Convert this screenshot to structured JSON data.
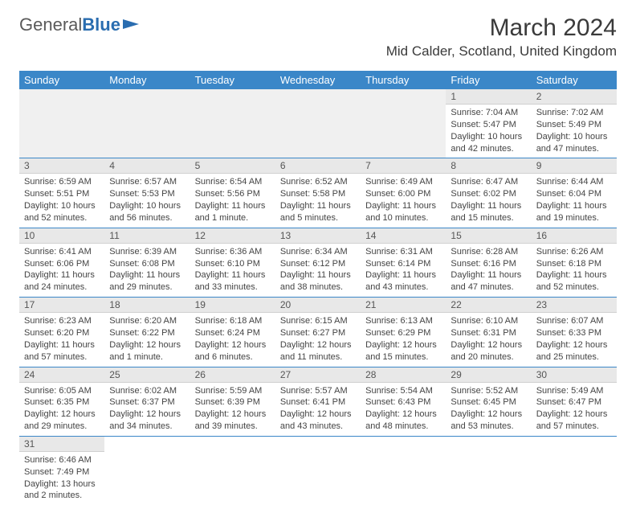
{
  "logo": {
    "text1": "General",
    "text2": "Blue"
  },
  "title": "March 2024",
  "location": "Mid Calder, Scotland, United Kingdom",
  "colors": {
    "header_bg": "#3b87c8",
    "header_fg": "#ffffff",
    "daynum_bg": "#e8e8e8",
    "border": "#3b87c8",
    "logo_accent": "#2a6db0"
  },
  "weekdays": [
    "Sunday",
    "Monday",
    "Tuesday",
    "Wednesday",
    "Thursday",
    "Friday",
    "Saturday"
  ],
  "cells": [
    {
      "n": "",
      "l1": "",
      "l2": "",
      "l3": "",
      "l4": ""
    },
    {
      "n": "",
      "l1": "",
      "l2": "",
      "l3": "",
      "l4": ""
    },
    {
      "n": "",
      "l1": "",
      "l2": "",
      "l3": "",
      "l4": ""
    },
    {
      "n": "",
      "l1": "",
      "l2": "",
      "l3": "",
      "l4": ""
    },
    {
      "n": "",
      "l1": "",
      "l2": "",
      "l3": "",
      "l4": ""
    },
    {
      "n": "1",
      "l1": "Sunrise: 7:04 AM",
      "l2": "Sunset: 5:47 PM",
      "l3": "Daylight: 10 hours",
      "l4": "and 42 minutes."
    },
    {
      "n": "2",
      "l1": "Sunrise: 7:02 AM",
      "l2": "Sunset: 5:49 PM",
      "l3": "Daylight: 10 hours",
      "l4": "and 47 minutes."
    },
    {
      "n": "3",
      "l1": "Sunrise: 6:59 AM",
      "l2": "Sunset: 5:51 PM",
      "l3": "Daylight: 10 hours",
      "l4": "and 52 minutes."
    },
    {
      "n": "4",
      "l1": "Sunrise: 6:57 AM",
      "l2": "Sunset: 5:53 PM",
      "l3": "Daylight: 10 hours",
      "l4": "and 56 minutes."
    },
    {
      "n": "5",
      "l1": "Sunrise: 6:54 AM",
      "l2": "Sunset: 5:56 PM",
      "l3": "Daylight: 11 hours",
      "l4": "and 1 minute."
    },
    {
      "n": "6",
      "l1": "Sunrise: 6:52 AM",
      "l2": "Sunset: 5:58 PM",
      "l3": "Daylight: 11 hours",
      "l4": "and 5 minutes."
    },
    {
      "n": "7",
      "l1": "Sunrise: 6:49 AM",
      "l2": "Sunset: 6:00 PM",
      "l3": "Daylight: 11 hours",
      "l4": "and 10 minutes."
    },
    {
      "n": "8",
      "l1": "Sunrise: 6:47 AM",
      "l2": "Sunset: 6:02 PM",
      "l3": "Daylight: 11 hours",
      "l4": "and 15 minutes."
    },
    {
      "n": "9",
      "l1": "Sunrise: 6:44 AM",
      "l2": "Sunset: 6:04 PM",
      "l3": "Daylight: 11 hours",
      "l4": "and 19 minutes."
    },
    {
      "n": "10",
      "l1": "Sunrise: 6:41 AM",
      "l2": "Sunset: 6:06 PM",
      "l3": "Daylight: 11 hours",
      "l4": "and 24 minutes."
    },
    {
      "n": "11",
      "l1": "Sunrise: 6:39 AM",
      "l2": "Sunset: 6:08 PM",
      "l3": "Daylight: 11 hours",
      "l4": "and 29 minutes."
    },
    {
      "n": "12",
      "l1": "Sunrise: 6:36 AM",
      "l2": "Sunset: 6:10 PM",
      "l3": "Daylight: 11 hours",
      "l4": "and 33 minutes."
    },
    {
      "n": "13",
      "l1": "Sunrise: 6:34 AM",
      "l2": "Sunset: 6:12 PM",
      "l3": "Daylight: 11 hours",
      "l4": "and 38 minutes."
    },
    {
      "n": "14",
      "l1": "Sunrise: 6:31 AM",
      "l2": "Sunset: 6:14 PM",
      "l3": "Daylight: 11 hours",
      "l4": "and 43 minutes."
    },
    {
      "n": "15",
      "l1": "Sunrise: 6:28 AM",
      "l2": "Sunset: 6:16 PM",
      "l3": "Daylight: 11 hours",
      "l4": "and 47 minutes."
    },
    {
      "n": "16",
      "l1": "Sunrise: 6:26 AM",
      "l2": "Sunset: 6:18 PM",
      "l3": "Daylight: 11 hours",
      "l4": "and 52 minutes."
    },
    {
      "n": "17",
      "l1": "Sunrise: 6:23 AM",
      "l2": "Sunset: 6:20 PM",
      "l3": "Daylight: 11 hours",
      "l4": "and 57 minutes."
    },
    {
      "n": "18",
      "l1": "Sunrise: 6:20 AM",
      "l2": "Sunset: 6:22 PM",
      "l3": "Daylight: 12 hours",
      "l4": "and 1 minute."
    },
    {
      "n": "19",
      "l1": "Sunrise: 6:18 AM",
      "l2": "Sunset: 6:24 PM",
      "l3": "Daylight: 12 hours",
      "l4": "and 6 minutes."
    },
    {
      "n": "20",
      "l1": "Sunrise: 6:15 AM",
      "l2": "Sunset: 6:27 PM",
      "l3": "Daylight: 12 hours",
      "l4": "and 11 minutes."
    },
    {
      "n": "21",
      "l1": "Sunrise: 6:13 AM",
      "l2": "Sunset: 6:29 PM",
      "l3": "Daylight: 12 hours",
      "l4": "and 15 minutes."
    },
    {
      "n": "22",
      "l1": "Sunrise: 6:10 AM",
      "l2": "Sunset: 6:31 PM",
      "l3": "Daylight: 12 hours",
      "l4": "and 20 minutes."
    },
    {
      "n": "23",
      "l1": "Sunrise: 6:07 AM",
      "l2": "Sunset: 6:33 PM",
      "l3": "Daylight: 12 hours",
      "l4": "and 25 minutes."
    },
    {
      "n": "24",
      "l1": "Sunrise: 6:05 AM",
      "l2": "Sunset: 6:35 PM",
      "l3": "Daylight: 12 hours",
      "l4": "and 29 minutes."
    },
    {
      "n": "25",
      "l1": "Sunrise: 6:02 AM",
      "l2": "Sunset: 6:37 PM",
      "l3": "Daylight: 12 hours",
      "l4": "and 34 minutes."
    },
    {
      "n": "26",
      "l1": "Sunrise: 5:59 AM",
      "l2": "Sunset: 6:39 PM",
      "l3": "Daylight: 12 hours",
      "l4": "and 39 minutes."
    },
    {
      "n": "27",
      "l1": "Sunrise: 5:57 AM",
      "l2": "Sunset: 6:41 PM",
      "l3": "Daylight: 12 hours",
      "l4": "and 43 minutes."
    },
    {
      "n": "28",
      "l1": "Sunrise: 5:54 AM",
      "l2": "Sunset: 6:43 PM",
      "l3": "Daylight: 12 hours",
      "l4": "and 48 minutes."
    },
    {
      "n": "29",
      "l1": "Sunrise: 5:52 AM",
      "l2": "Sunset: 6:45 PM",
      "l3": "Daylight: 12 hours",
      "l4": "and 53 minutes."
    },
    {
      "n": "30",
      "l1": "Sunrise: 5:49 AM",
      "l2": "Sunset: 6:47 PM",
      "l3": "Daylight: 12 hours",
      "l4": "and 57 minutes."
    },
    {
      "n": "31",
      "l1": "Sunrise: 6:46 AM",
      "l2": "Sunset: 7:49 PM",
      "l3": "Daylight: 13 hours",
      "l4": "and 2 minutes."
    },
    {
      "n": "",
      "l1": "",
      "l2": "",
      "l3": "",
      "l4": ""
    },
    {
      "n": "",
      "l1": "",
      "l2": "",
      "l3": "",
      "l4": ""
    },
    {
      "n": "",
      "l1": "",
      "l2": "",
      "l3": "",
      "l4": ""
    },
    {
      "n": "",
      "l1": "",
      "l2": "",
      "l3": "",
      "l4": ""
    },
    {
      "n": "",
      "l1": "",
      "l2": "",
      "l3": "",
      "l4": ""
    },
    {
      "n": "",
      "l1": "",
      "l2": "",
      "l3": "",
      "l4": ""
    }
  ]
}
